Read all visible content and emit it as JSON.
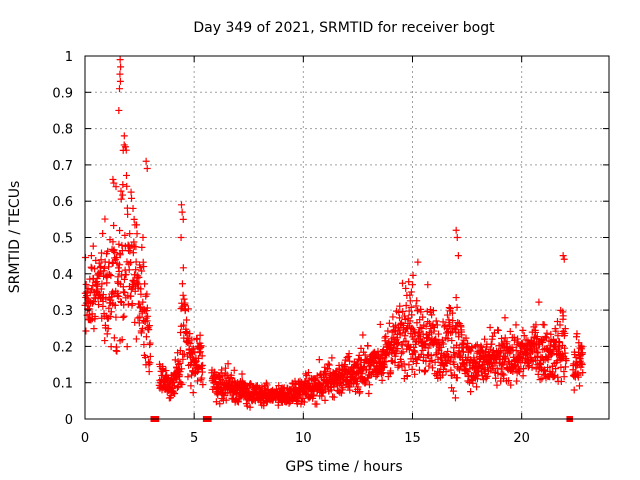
{
  "chart_data": {
    "type": "scatter",
    "title": "Day 349 of 2021, SRMTID for receiver bogt",
    "xlabel": "GPS time / hours",
    "ylabel": "SRMTID / TECUs",
    "xlim": [
      0,
      24
    ],
    "ylim": [
      0,
      1
    ],
    "x_ticks": [
      0,
      5,
      10,
      15,
      20
    ],
    "x_tick_labels": [
      "0",
      "5",
      "10",
      "15",
      "20"
    ],
    "y_ticks": [
      0,
      0.1,
      0.2,
      0.3,
      0.4,
      0.5,
      0.6,
      0.7,
      0.8,
      0.9,
      1
    ],
    "y_tick_labels": [
      "0",
      "0.1",
      "0.2",
      "0.3",
      "0.4",
      "0.5",
      "0.6",
      "0.7",
      "0.8",
      "0.9",
      "1"
    ],
    "grid": true,
    "marker": "+",
    "color": "#ff0000",
    "series": [
      {
        "name": "SRMTID",
        "envelope_hours": [
          0,
          0.5,
          1.0,
          1.5,
          1.7,
          2.0,
          2.5,
          2.8,
          3.0,
          3.3,
          3.6,
          4.0,
          4.3,
          4.5,
          4.7,
          5.0,
          5.3,
          5.6,
          6.0,
          6.5,
          7.0,
          7.5,
          8.0,
          8.5,
          9.0,
          9.5,
          10.0,
          10.5,
          11.0,
          11.5,
          12.0,
          12.5,
          13.0,
          13.5,
          14.0,
          14.5,
          15.0,
          15.5,
          16.0,
          16.5,
          17.0,
          17.3,
          17.6,
          18.0,
          18.5,
          19.0,
          19.5,
          20.0,
          20.5,
          21.0,
          21.5,
          21.9,
          22.2,
          22.5,
          22.8
        ],
        "median_tecu": [
          0.33,
          0.35,
          0.35,
          0.38,
          0.45,
          0.42,
          0.35,
          0.28,
          0.18,
          0.14,
          0.11,
          0.09,
          0.12,
          0.3,
          0.2,
          0.14,
          0.17,
          0.12,
          0.1,
          0.09,
          0.08,
          0.07,
          0.065,
          0.065,
          0.065,
          0.07,
          0.08,
          0.09,
          0.1,
          0.11,
          0.12,
          0.13,
          0.14,
          0.16,
          0.19,
          0.22,
          0.23,
          0.22,
          0.2,
          0.19,
          0.22,
          0.18,
          0.15,
          0.15,
          0.16,
          0.16,
          0.17,
          0.18,
          0.19,
          0.18,
          0.17,
          0.22,
          0.14,
          0.15,
          0.17
        ],
        "spread_tecu": [
          0.08,
          0.09,
          0.12,
          0.14,
          0.22,
          0.15,
          0.12,
          0.1,
          0.05,
          0.03,
          0.03,
          0.03,
          0.05,
          0.14,
          0.08,
          0.05,
          0.05,
          0.04,
          0.035,
          0.03,
          0.03,
          0.025,
          0.02,
          0.02,
          0.02,
          0.02,
          0.025,
          0.03,
          0.035,
          0.035,
          0.04,
          0.04,
          0.04,
          0.045,
          0.05,
          0.07,
          0.08,
          0.07,
          0.07,
          0.06,
          0.12,
          0.05,
          0.05,
          0.05,
          0.05,
          0.05,
          0.05,
          0.055,
          0.05,
          0.05,
          0.05,
          0.09,
          0.04,
          0.05,
          0.05
        ],
        "peaks": [
          {
            "x": 1.61,
            "y": 0.99
          },
          {
            "x": 1.63,
            "y": 0.97
          },
          {
            "x": 1.6,
            "y": 0.95
          },
          {
            "x": 1.62,
            "y": 0.93
          },
          {
            "x": 1.58,
            "y": 0.91
          },
          {
            "x": 1.55,
            "y": 0.85
          },
          {
            "x": 1.8,
            "y": 0.78
          },
          {
            "x": 1.85,
            "y": 0.75
          },
          {
            "x": 1.75,
            "y": 0.74
          },
          {
            "x": 1.28,
            "y": 0.66
          },
          {
            "x": 1.32,
            "y": 0.65
          },
          {
            "x": 1.42,
            "y": 0.64
          },
          {
            "x": 2.8,
            "y": 0.71
          },
          {
            "x": 2.85,
            "y": 0.69
          },
          {
            "x": 2.2,
            "y": 0.58
          },
          {
            "x": 2.25,
            "y": 0.55
          },
          {
            "x": 4.42,
            "y": 0.59
          },
          {
            "x": 4.45,
            "y": 0.57
          },
          {
            "x": 4.5,
            "y": 0.55
          },
          {
            "x": 4.4,
            "y": 0.5
          },
          {
            "x": 17.0,
            "y": 0.52
          },
          {
            "x": 17.05,
            "y": 0.5
          },
          {
            "x": 17.1,
            "y": 0.45
          },
          {
            "x": 21.9,
            "y": 0.45
          },
          {
            "x": 21.95,
            "y": 0.44
          },
          {
            "x": 15.7,
            "y": 0.37
          },
          {
            "x": 15.0,
            "y": 0.37
          },
          {
            "x": 14.95,
            "y": 0.35
          }
        ],
        "zero_gaps_hours": [
          [
            3.0,
            3.4
          ],
          [
            5.4,
            5.8
          ],
          [
            22.05,
            22.35
          ]
        ]
      }
    ]
  }
}
